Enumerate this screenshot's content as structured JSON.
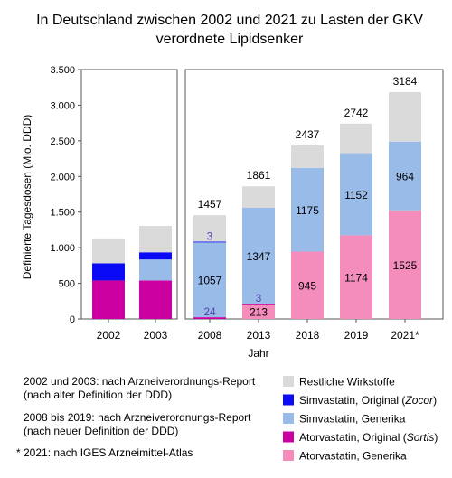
{
  "chart_data": {
    "type": "bar",
    "stacked": true,
    "title_line1": "In Deutschland zwischen 2002 und 2021 zu Lasten der GKV",
    "title_line2": "verordnete Lipidsenker",
    "ylabel": "Definierte Tagesdosen (Mio. DDD)",
    "xlabel": "Jahr",
    "ylim": [
      0,
      3500
    ],
    "ytick_values": [
      0,
      500,
      1000,
      1500,
      2000,
      2500,
      3000,
      3500
    ],
    "ytick_labels": [
      "0",
      "500",
      "1.000",
      "1.500",
      "2.000",
      "2.500",
      "3.000",
      "3.500"
    ],
    "grid": false,
    "panels": [
      {
        "categories": [
          "2002",
          "2003"
        ]
      },
      {
        "categories": [
          "2008",
          "2013",
          "2018",
          "2019",
          "2021*"
        ]
      }
    ],
    "categories": [
      "2002",
      "2003",
      "2008",
      "2013",
      "2018",
      "2019",
      "2021*"
    ],
    "totals": [
      1130,
      1305,
      1457,
      1861,
      2437,
      2742,
      3184
    ],
    "total_labels": [
      "",
      "",
      "1457",
      "1861",
      "2437",
      "2742",
      "3184"
    ],
    "series": [
      {
        "name": "Atorvastatin, Generika",
        "color": "#f48cbc",
        "values": [
          0,
          0,
          0,
          213,
          945,
          1174,
          1525
        ],
        "labels": [
          "",
          "",
          "",
          "213",
          "945",
          "1174",
          "1525"
        ]
      },
      {
        "name": "Atorvastatin, Original (Sortis)",
        "color": "#cc00a0",
        "values": [
          540,
          540,
          24,
          3,
          0,
          0,
          0
        ],
        "labels": [
          "",
          "",
          "24",
          "3",
          "",
          "",
          ""
        ]
      },
      {
        "name": "Simvastatin, Generika",
        "color": "#99bbe8",
        "values": [
          0,
          295,
          1057,
          1347,
          1175,
          1152,
          964
        ],
        "labels": [
          "",
          "",
          "1057",
          "1347",
          "1175",
          "1152",
          "964"
        ]
      },
      {
        "name": "Simvastatin, Original (Zocor)",
        "color": "#0a0af5",
        "values": [
          240,
          100,
          3,
          0,
          0,
          0,
          0
        ],
        "labels": [
          "",
          "",
          "3",
          "",
          "",
          "",
          ""
        ]
      },
      {
        "name": "Restliche Wirkstoffe",
        "color": "#dadada",
        "values": [
          350,
          370,
          373,
          298,
          317,
          416,
          695
        ],
        "labels": [
          "",
          "",
          "",
          "",
          "",
          "",
          ""
        ]
      }
    ],
    "legend_order": [
      4,
      3,
      2,
      1,
      0
    ],
    "legend_position": "bottom-right",
    "notes": [
      {
        "line1": "2002 und 2003: nach Arzneiverordnungs-Report",
        "line2": "(nach alter Definition der DDD)"
      },
      {
        "line1": "2008 bis 2019: nach Arzneiverordnungs-Report",
        "line2": "(nach neuer Definition der DDD)"
      },
      {
        "line1": "* 2021: nach IGES Arzneimittel-Atlas",
        "line2": ""
      }
    ]
  }
}
